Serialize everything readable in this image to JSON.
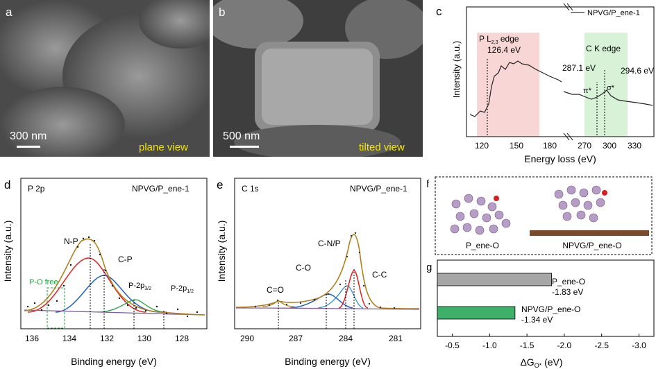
{
  "panel_a": {
    "label": "a",
    "scale": "300 nm",
    "caption": "plane view"
  },
  "panel_b": {
    "label": "b",
    "scale": "500 nm",
    "caption": "tilted view"
  },
  "panel_c": {
    "label": "c",
    "legend": "NPVG/P_ene-1",
    "ylabel": "Intensity (a.u.)",
    "xlabel": "Energy loss (eV)",
    "ticks_left": [
      "120",
      "150",
      "180"
    ],
    "ticks_right": [
      "270",
      "300",
      "330"
    ],
    "pl_edge_main": "P L",
    "pl_edge_sub": "2,3",
    "pl_edge_tail": " edge",
    "pl_value": "126.4 eV",
    "ck_edge": "C K edge",
    "pi_value": "287.1 eV",
    "sigma_value": "294.6 eV",
    "pi": "π*",
    "sigma": "σ*",
    "pl_band_color": "#f9d6d6",
    "ck_band_color": "#d7f2d7"
  },
  "panel_d": {
    "label": "d",
    "title": "P 2p",
    "sample": "NPVG/P_ene-1",
    "ylabel": "Intensity (a.u.)",
    "xlabel": "Binding energy (eV)",
    "ticks": [
      "136",
      "134",
      "132",
      "130",
      "128"
    ],
    "labels": {
      "np": "N-P",
      "cp": "C-P",
      "pof": "P-O free",
      "p2p32": "P-2p",
      "p2p32_sub": "3/2",
      "p2p12": "P-2p",
      "p2p12_sub": "1/2"
    }
  },
  "panel_e": {
    "label": "e",
    "title": "C 1s",
    "sample": "NPVG/P_ene-1",
    "ylabel": "Intensity (a.u.)",
    "xlabel": "Binding energy (eV)",
    "ticks": [
      "290",
      "287",
      "284",
      "281"
    ],
    "labels": {
      "co2": "C=O",
      "co": "C-O",
      "cnp": "C-N/P",
      "cc": "C-C"
    }
  },
  "panel_f": {
    "label": "f",
    "left": "P_ene-O",
    "right": "NPVG/P_ene-O"
  },
  "panel_g": {
    "label": "g",
    "xlabel": "ΔG",
    "xlabel_sub": "O*",
    "xlabel_unit": " (eV)",
    "ticks": [
      "-0.5",
      "-1.0",
      "-1.5",
      "-2.0",
      "-2.5",
      "-3.0"
    ],
    "bars": [
      {
        "name": "P_ene-O",
        "value": "-1.83 eV",
        "num": -1.83,
        "color": "#a6a6a6"
      },
      {
        "name": "NPVG/P_ene-O",
        "value": "-1.34 eV",
        "num": -1.34,
        "color": "#3fb06a"
      }
    ]
  },
  "chart_data": [
    {
      "type": "line",
      "title": "",
      "xlabel": "Energy loss (eV)",
      "ylabel": "Intensity (a.u.)",
      "series": [
        {
          "name": "NPVG/P_ene-1",
          "x": [
            110,
            120,
            126.4,
            135,
            145,
            150,
            160,
            170,
            180,
            190,
            270,
            280,
            287.1,
            294.6,
            300,
            310,
            320,
            330
          ],
          "y": [
            0.2,
            0.22,
            0.35,
            0.55,
            0.72,
            0.78,
            0.82,
            0.84,
            0.8,
            0.7,
            0.32,
            0.3,
            0.34,
            0.38,
            0.36,
            0.31,
            0.28,
            0.26
          ]
        }
      ]
    },
    {
      "type": "line",
      "title": "P 2p",
      "xlabel": "Binding energy (eV)",
      "ylabel": "Intensity (a.u.)",
      "xlim": [
        137,
        127
      ],
      "series": [
        {
          "name": "N-P",
          "x": [
            133.2
          ],
          "y": [
            0.72
          ]
        },
        {
          "name": "C-P",
          "x": [
            132.4
          ],
          "y": [
            0.48
          ]
        },
        {
          "name": "P-2p 3/2",
          "x": [
            131
          ],
          "y": [
            0.08
          ]
        },
        {
          "name": "P-2p 1/2",
          "x": [
            129.4
          ],
          "y": [
            0.05
          ]
        }
      ]
    },
    {
      "type": "line",
      "title": "C 1s",
      "xlabel": "Binding energy (eV)",
      "ylabel": "Intensity (a.u.)",
      "xlim": [
        291,
        280
      ],
      "series": [
        {
          "name": "C=O",
          "x": [
            288.8
          ],
          "y": [
            0.06
          ]
        },
        {
          "name": "C-O",
          "x": [
            285.9
          ],
          "y": [
            0.16
          ]
        },
        {
          "name": "C-N/P",
          "x": [
            284.6
          ],
          "y": [
            0.22
          ]
        },
        {
          "name": "C-C",
          "x": [
            284.2
          ],
          "y": [
            0.75
          ]
        }
      ]
    },
    {
      "type": "bar",
      "title": "",
      "categories": [
        "P_ene-O",
        "NPVG/P_ene-O"
      ],
      "values": [
        -1.83,
        -1.34
      ],
      "xlabel": "ΔGO* (eV)",
      "xlim": [
        -0.3,
        -3.2
      ]
    }
  ]
}
